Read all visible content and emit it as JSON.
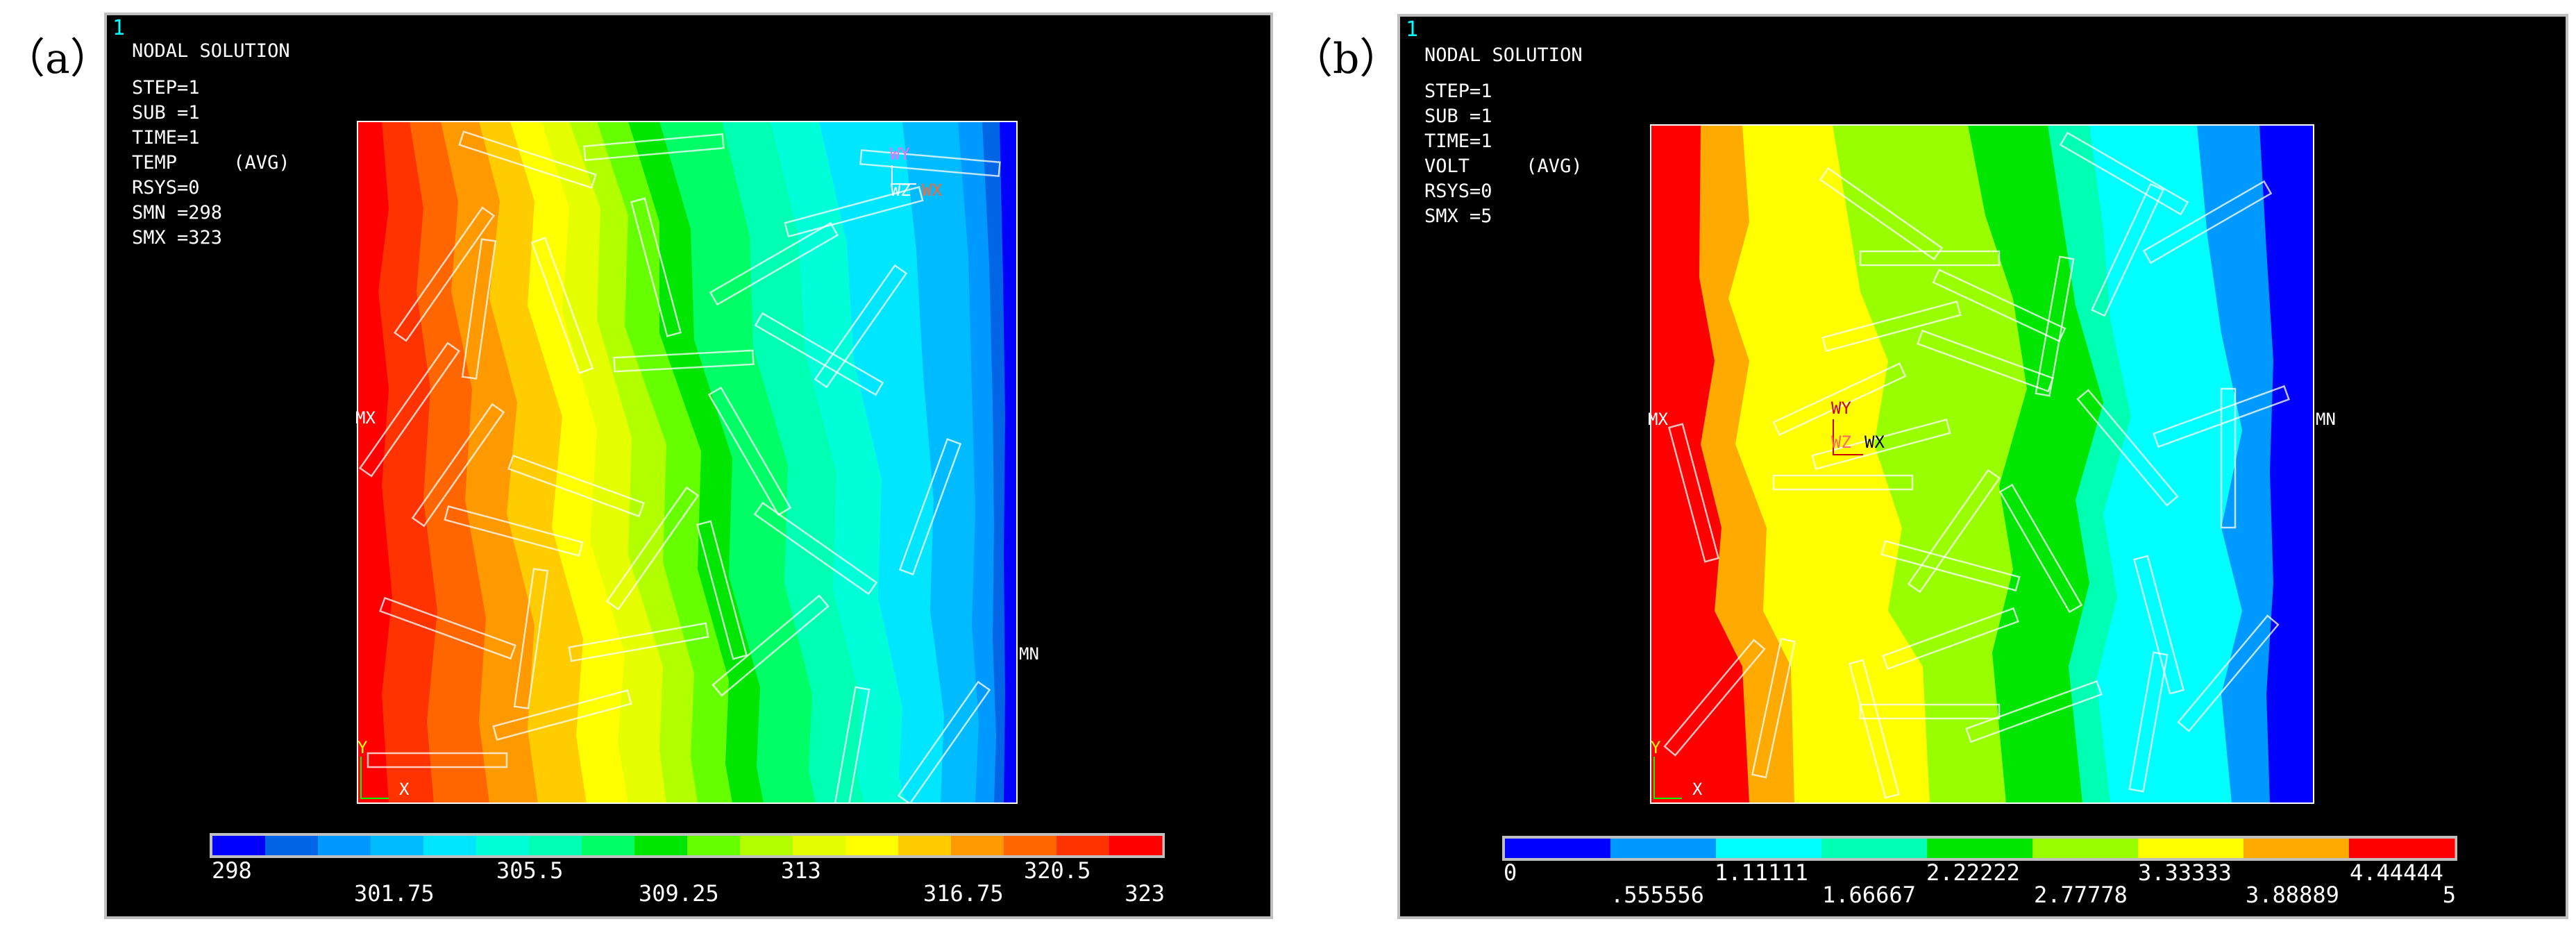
{
  "panels": [
    {
      "label": "（a）",
      "window_number": "1",
      "title": "NODAL SOLUTION",
      "info": [
        "STEP=1",
        "SUB =1",
        "TIME=1",
        "TEMP     (AVG)",
        "RSYS=0",
        "SMN =298",
        "SMX =323"
      ],
      "markers": {
        "max": "MX",
        "min": "MN",
        "axis_y": "Y",
        "axis_x": "X",
        "wp_top": "WY",
        "wp_z": "WZ",
        "wp_x": "WX"
      },
      "colors": [
        "#0000ff",
        "#0066e6",
        "#0099ff",
        "#00bbff",
        "#00e6ff",
        "#00ffd9",
        "#00ffb2",
        "#00ff66",
        "#00e600",
        "#66ff00",
        "#b2ff00",
        "#e6ff00",
        "#ffff00",
        "#ffcc00",
        "#ff9900",
        "#ff6600",
        "#ff3300",
        "#ff0000"
      ],
      "legend_top": [
        "298",
        "305.5",
        "313",
        "320.5"
      ],
      "legend_bottom": [
        "301.75",
        "309.25",
        "316.75",
        "323"
      ]
    },
    {
      "label": "（b）",
      "window_number": "1",
      "title": "NODAL SOLUTION",
      "info": [
        "STEP=1",
        "SUB =1",
        "TIME=1",
        "VOLT     (AVG)",
        "RSYS=0",
        "SMX =5"
      ],
      "markers": {
        "max": "MX",
        "min": "MN",
        "axis_y": "Y",
        "axis_x": "X",
        "wp_top": "WY",
        "wp_z": "WZ",
        "wp_x": "WX"
      },
      "colors": [
        "#0000ff",
        "#0099ff",
        "#00ffff",
        "#00ffb2",
        "#00e600",
        "#99ff00",
        "#ffff00",
        "#ffaa00",
        "#ff0000"
      ],
      "legend_top": [
        "0",
        "1.11111",
        "2.22222",
        "3.33333",
        "4.44444"
      ],
      "legend_bottom": [
        ".555556",
        "1.66667",
        "2.77778",
        "3.88889",
        "5"
      ]
    }
  ]
}
